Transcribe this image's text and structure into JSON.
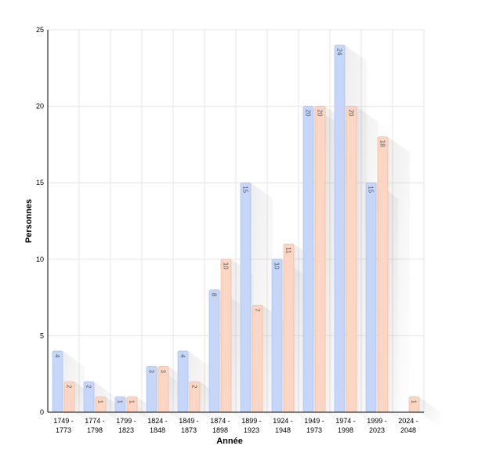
{
  "chart_data": {
    "type": "bar",
    "title": "",
    "xlabel": "Année",
    "ylabel": "Personnes",
    "ylim": [
      0,
      25
    ],
    "yticks": [
      0,
      5,
      10,
      15,
      20,
      25
    ],
    "grid": true,
    "categories": [
      [
        "1749 -",
        "1773"
      ],
      [
        "1774 -",
        "1798"
      ],
      [
        "1799 -",
        "1823"
      ],
      [
        "1824 -",
        "1848"
      ],
      [
        "1849 -",
        "1873"
      ],
      [
        "1874 -",
        "1898"
      ],
      [
        "1899 -",
        "1923"
      ],
      [
        "1924 -",
        "1948"
      ],
      [
        "1949 -",
        "1973"
      ],
      [
        "1974 -",
        "1998"
      ],
      [
        "1999 -",
        "2023"
      ],
      [
        "2024 -",
        "2048"
      ]
    ],
    "series": [
      {
        "values": [
          4,
          2,
          1,
          3,
          4,
          8,
          15,
          10,
          20,
          24,
          15,
          0
        ],
        "color": "#c4d7fb",
        "stroke": "#9db8f0"
      },
      {
        "values": [
          2,
          1,
          1,
          3,
          2,
          10,
          7,
          11,
          20,
          20,
          18,
          1
        ],
        "color": "#fdd6c3",
        "stroke": "#e9b49a"
      }
    ]
  }
}
